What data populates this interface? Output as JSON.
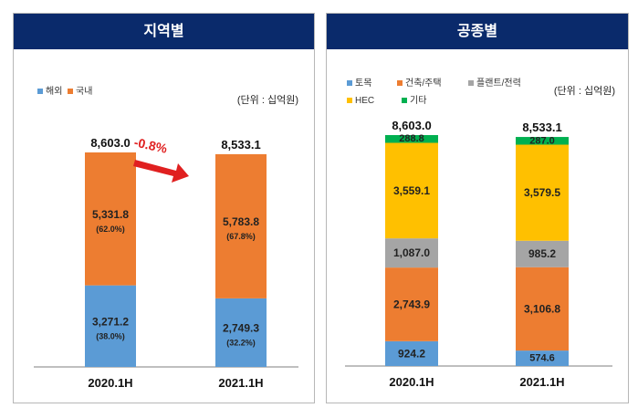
{
  "chart_data": [
    {
      "type": "bar",
      "stacked": true,
      "title": "지역별",
      "unit": "(단위 : 십억원)",
      "categories": [
        "2020.1H",
        "2021.1H"
      ],
      "totals": [
        "8,603.0",
        "8,533.1"
      ],
      "series": [
        {
          "name": "해외",
          "color": "#5b9bd5",
          "values": [
            3271.2,
            2749.3
          ],
          "labels": [
            "3,271.2",
            "2,749.3"
          ],
          "pct": [
            "(38.0%)",
            "(32.2%)"
          ]
        },
        {
          "name": "국내",
          "color": "#ed7d31",
          "values": [
            5331.8,
            5783.8
          ],
          "labels": [
            "5,331.8",
            "5,783.8"
          ],
          "pct": [
            "(62.0%)",
            "(67.8%)"
          ]
        }
      ],
      "change": "-0.8%",
      "ylim": [
        0,
        8603.0
      ]
    },
    {
      "type": "bar",
      "stacked": true,
      "title": "공종별",
      "unit": "(단위 : 십억원)",
      "categories": [
        "2020.1H",
        "2021.1H"
      ],
      "totals": [
        "8,603.0",
        "8,533.1"
      ],
      "series": [
        {
          "name": "토목",
          "color": "#5b9bd5",
          "values": [
            924.2,
            574.6
          ],
          "labels": [
            "924.2",
            "574.6"
          ]
        },
        {
          "name": "건축/주택",
          "color": "#ed7d31",
          "values": [
            2743.9,
            3106.8
          ],
          "labels": [
            "2,743.9",
            "3,106.8"
          ]
        },
        {
          "name": "플랜트/전력",
          "color": "#a5a5a5",
          "values": [
            1087.0,
            985.2
          ],
          "labels": [
            "1,087.0",
            "985.2"
          ]
        },
        {
          "name": "HEC",
          "color": "#ffc000",
          "values": [
            3559.1,
            3579.5
          ],
          "labels": [
            "3,559.1",
            "3,579.5"
          ]
        },
        {
          "name": "기타",
          "color": "#00b050",
          "values": [
            288.8,
            287.0
          ],
          "labels": [
            "288.8",
            "287.0"
          ]
        }
      ],
      "ylim": [
        0,
        8603.0
      ]
    }
  ]
}
